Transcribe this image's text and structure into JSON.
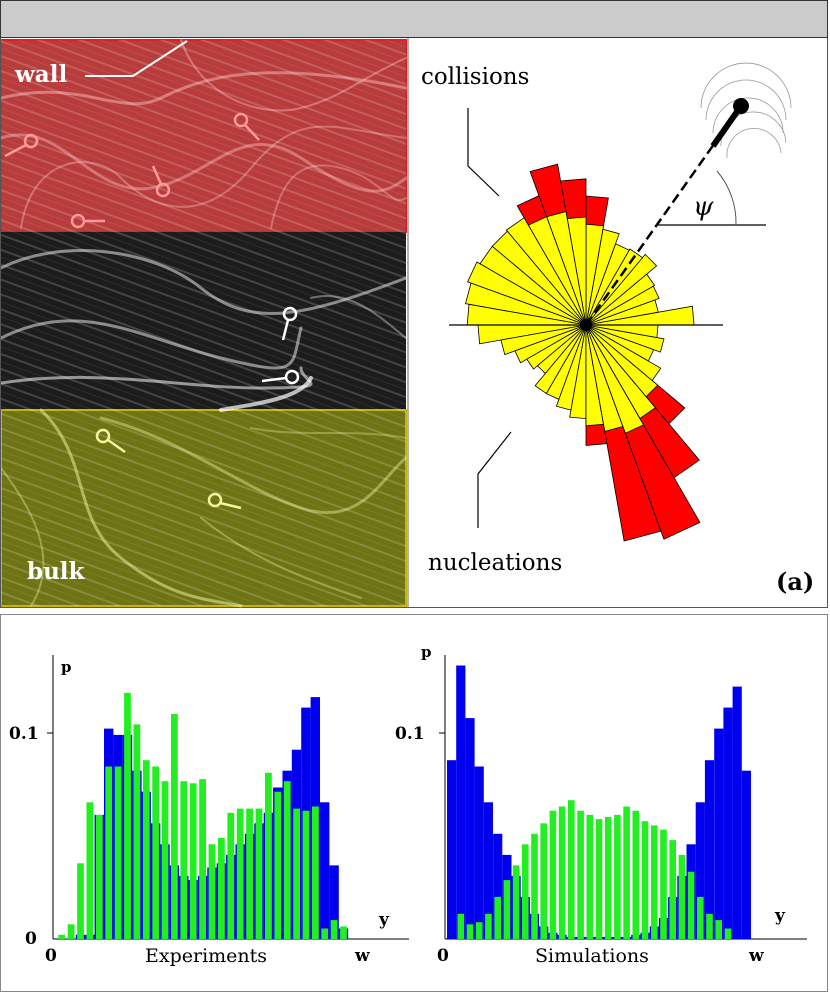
{
  "panel_label": "(a)",
  "micrograph": {
    "wall_label": "wall",
    "bulk_label": "bulk",
    "colors": {
      "wall_tint": "#c84848",
      "bulk_tint": "#8c961e",
      "middle": "#202020"
    }
  },
  "rose": {
    "collisions_label": "collisions",
    "nucleations_label": "nucleations",
    "angle_label": "ψ",
    "colors": {
      "collisions": "#ff0000",
      "nucleations": "#ffff00",
      "edge": "#000000"
    }
  },
  "chart_data": [
    {
      "type": "bar",
      "xlabel": "Experiments",
      "ylabel": "p",
      "x_tick_labels": [
        "0",
        "w"
      ],
      "y_tick_labels": [
        "0",
        "0.1"
      ],
      "axis_end_label": "y",
      "ylim": [
        0,
        0.135
      ],
      "colors": {
        "blue": "#0000ee",
        "green": "#22ee22"
      },
      "series": [
        {
          "values": [
            0.0,
            0.0,
            0.002,
            0.002,
            0.059,
            0.1,
            0.097,
            0.097,
            0.08,
            0.07,
            0.055,
            0.045,
            0.035,
            0.03,
            0.028,
            0.03,
            0.034,
            0.036,
            0.04,
            0.045,
            0.05,
            0.055,
            0.06,
            0.072,
            0.08,
            0.09,
            0.11,
            0.115,
            0.065,
            0.035,
            0.005,
            0.0,
            0.0
          ]
        },
        {
          "values": [
            0.002,
            0.007,
            0.036,
            0.065,
            0.059,
            0.082,
            0.082,
            0.117,
            0.102,
            0.085,
            0.082,
            0.075,
            0.107,
            0.075,
            0.074,
            0.076,
            0.045,
            0.048,
            0.06,
            0.062,
            0.062,
            0.062,
            0.079,
            0.07,
            0.075,
            0.062,
            0.061,
            0.063,
            0.005,
            0.009,
            0.006,
            0.0,
            0.0
          ]
        }
      ]
    },
    {
      "type": "bar",
      "xlabel": "Simulations",
      "ylabel": "p",
      "x_tick_labels": [
        "0",
        "w"
      ],
      "y_tick_labels": [
        "0.1"
      ],
      "axis_end_label": "y",
      "ylim": [
        0,
        0.135
      ],
      "colors": {
        "blue": "#0000ee",
        "green": "#22ee22"
      },
      "series": [
        {
          "values": [
            0.085,
            0.13,
            0.105,
            0.082,
            0.065,
            0.05,
            0.04,
            0.03,
            0.02,
            0.012,
            0.006,
            0.003,
            0.002,
            0.001,
            0.001,
            0.001,
            0.001,
            0.001,
            0.001,
            0.001,
            0.002,
            0.003,
            0.006,
            0.01,
            0.02,
            0.03,
            0.045,
            0.065,
            0.085,
            0.1,
            0.11,
            0.12,
            0.08
          ]
        },
        {
          "values": [
            0.0,
            0.012,
            0.007,
            0.008,
            0.012,
            0.02,
            0.028,
            0.035,
            0.045,
            0.05,
            0.055,
            0.061,
            0.063,
            0.066,
            0.061,
            0.059,
            0.057,
            0.058,
            0.059,
            0.063,
            0.061,
            0.056,
            0.054,
            0.052,
            0.047,
            0.04,
            0.032,
            0.02,
            0.012,
            0.009,
            0.005,
            0.0,
            0.0
          ]
        }
      ]
    }
  ]
}
